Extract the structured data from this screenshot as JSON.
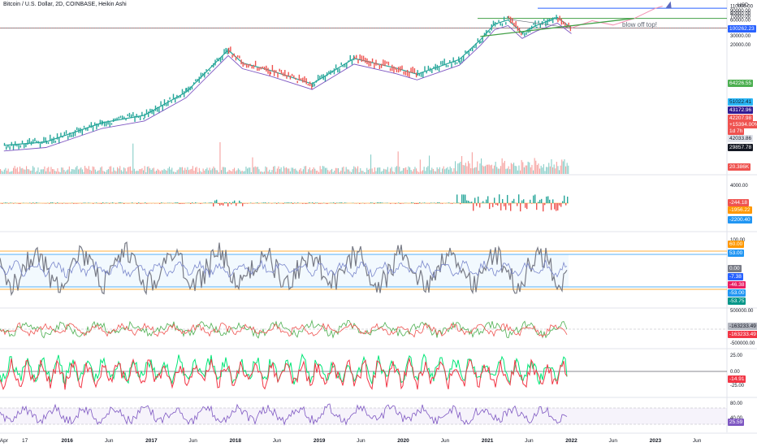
{
  "header": {
    "title": "Bitcoin / U.S. Dollar, 2D, COINBASE, Heikin Ashi"
  },
  "annotation": {
    "text": "blow off top!"
  },
  "price_axis": {
    "currency": "USD"
  },
  "chart_data": [
    {
      "type": "line",
      "panel": "price",
      "yticks": [
        "110000.00",
        "90000.00",
        "80000.00",
        "70000.00",
        "60000.00",
        "30000.00",
        "20000.00"
      ],
      "levels": [
        {
          "name": "blow off top",
          "value": 100262.23,
          "color": "#2962ff"
        },
        {
          "name": "resistance",
          "value": 64226.55,
          "color": "#43a047"
        },
        {
          "name": "support",
          "value": 42033.86,
          "color": "#131722"
        }
      ],
      "badges": [
        {
          "text": "100262.23",
          "color": "#2962ff",
          "textcolor": "dark"
        },
        {
          "text": "64226.55",
          "color": "#4caf50",
          "textcolor": "dark"
        },
        {
          "text": "51022.41",
          "color": "#29b6f6",
          "textcolor": "light"
        },
        {
          "text": "43172.96",
          "color": "#311b92",
          "textcolor": "dark"
        },
        {
          "text": "42207.98",
          "color": "#ef5350",
          "textcolor": "dark"
        },
        {
          "text": "+15394.00%",
          "color": "#ef5350",
          "textcolor": "dark"
        },
        {
          "text": "1d 7h",
          "color": "#ef5350",
          "textcolor": "dark"
        },
        {
          "text": "42033.86",
          "color": "#e0e3eb",
          "textcolor": "light"
        },
        {
          "text": "29857.78",
          "color": "#131722",
          "textcolor": "dark"
        },
        {
          "text": "20.386K",
          "color": "#ef5350",
          "textcolor": "dark"
        }
      ],
      "x_ticks": [
        "Apr",
        "17",
        "2016",
        "Jun",
        "2017",
        "Jun",
        "2018",
        "Jun",
        "2019",
        "Jun",
        "2020",
        "Jun",
        "2021",
        "Jun",
        "2022",
        "Jun",
        "2023",
        "Jun"
      ],
      "price_path": [
        [
          "2015-04",
          240
        ],
        [
          "2015-10",
          280
        ],
        [
          "2016-06",
          650
        ],
        [
          "2016-12",
          900
        ],
        [
          "2017-06",
          2500
        ],
        [
          "2017-12",
          16000
        ],
        [
          "2018-02",
          9000
        ],
        [
          "2018-06",
          6500
        ],
        [
          "2018-12",
          3600
        ],
        [
          "2019-06",
          11000
        ],
        [
          "2019-12",
          7200
        ],
        [
          "2020-03",
          5500
        ],
        [
          "2020-09",
          10500
        ],
        [
          "2020-12",
          25000
        ],
        [
          "2021-02",
          50000
        ],
        [
          "2021-04",
          60000
        ],
        [
          "2021-06",
          34000
        ],
        [
          "2021-08",
          47000
        ],
        [
          "2021-11",
          67000
        ],
        [
          "2022-01",
          42000
        ]
      ],
      "projection_path": [
        [
          "2022-01",
          42000
        ],
        [
          "2022-04",
          58000
        ],
        [
          "2022-07",
          48000
        ],
        [
          "2022-10",
          64000
        ],
        [
          "2023-01",
          100000
        ],
        [
          "2023-02",
          110000
        ]
      ]
    },
    {
      "type": "line",
      "panel": "macd",
      "yticks": [
        "4000.00"
      ],
      "badges": [
        {
          "text": "-244.18",
          "color": "#ef5350",
          "textcolor": "dark"
        },
        {
          "text": "-1956.22",
          "color": "#ff9800",
          "textcolor": "dark"
        },
        {
          "text": "-2200.40",
          "color": "#2196f3",
          "textcolor": "dark"
        }
      ]
    },
    {
      "type": "line",
      "panel": "stochastic",
      "yticks": [
        "100.00"
      ],
      "badges": [
        {
          "text": "60.00",
          "color": "#ff9800",
          "textcolor": "dark"
        },
        {
          "text": "53.00",
          "color": "#2196f3",
          "textcolor": "dark"
        },
        {
          "text": "0.00",
          "color": "#787b86",
          "textcolor": "dark"
        },
        {
          "text": "-7.38",
          "color": "#2962ff",
          "textcolor": "dark"
        },
        {
          "text": "-46.38",
          "color": "#e91e63",
          "textcolor": "dark"
        },
        {
          "text": "-53.00",
          "color": "#2196f3",
          "textcolor": "dark"
        },
        {
          "text": "-53.75",
          "color": "#009688",
          "textcolor": "dark"
        }
      ]
    },
    {
      "type": "line",
      "panel": "oscillator",
      "yticks": [
        "500000.00",
        "-500000.00"
      ],
      "badges": [
        {
          "text": "-163233.49",
          "color": "#b2b5be",
          "textcolor": "light"
        },
        {
          "text": "-163233.49",
          "color": "#f23645",
          "textcolor": "dark"
        }
      ]
    },
    {
      "type": "line",
      "panel": "momentum",
      "yticks": [
        "25.00",
        "0.00",
        "-25.00"
      ],
      "badges": [
        {
          "text": "-14.91",
          "color": "#f23645",
          "textcolor": "dark"
        }
      ]
    },
    {
      "type": "line",
      "panel": "rsi",
      "yticks": [
        "80.00",
        "40.00"
      ],
      "badges": [
        {
          "text": "25.59",
          "color": "#7e57c2",
          "textcolor": "dark"
        }
      ]
    }
  ]
}
